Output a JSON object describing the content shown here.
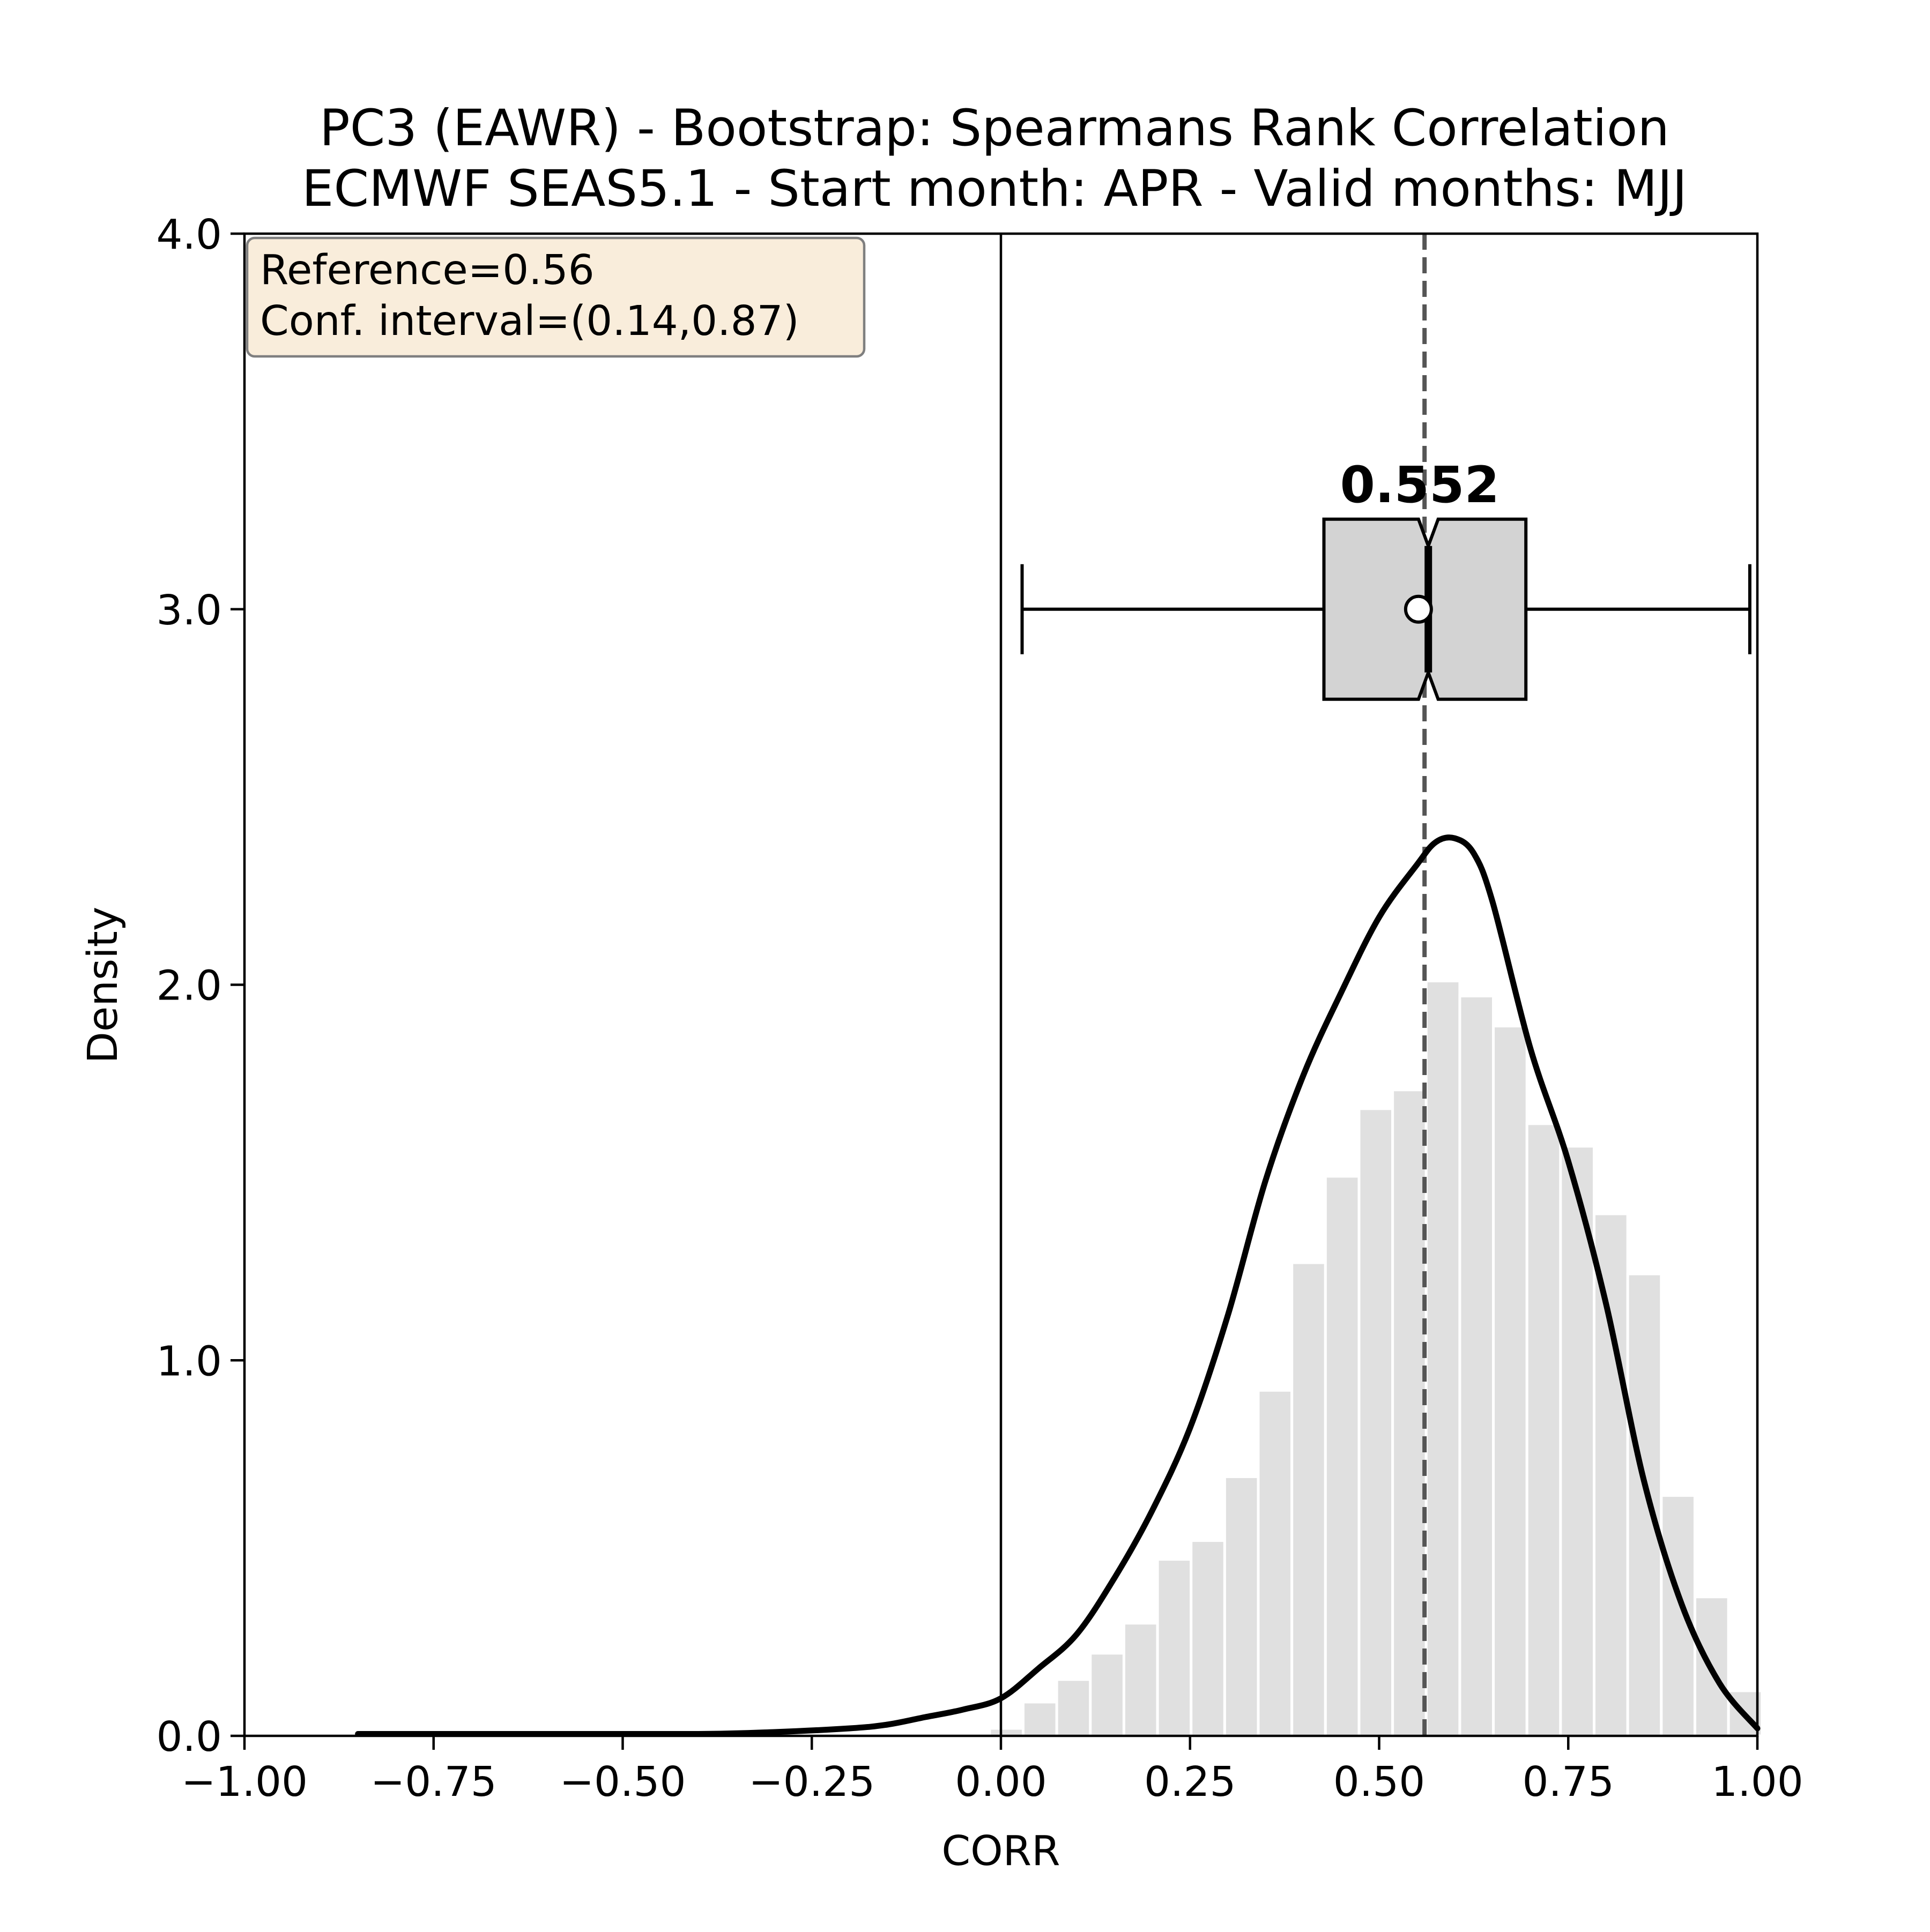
{
  "chart_data": {
    "type": "bar",
    "title": "PC3 (EAWR) - Bootstrap: Spearmans Rank Correlation",
    "subtitle": "ECMWF SEAS5.1 - Start month: APR - Valid months: MJJ",
    "xlabel": "CORR",
    "ylabel": "Density",
    "xlim": [
      -1.0,
      1.0
    ],
    "ylim": [
      0.0,
      4.0
    ],
    "xticks": [
      {
        "value": -1.0,
        "label": "−1.00"
      },
      {
        "value": -0.75,
        "label": "−0.75"
      },
      {
        "value": -0.5,
        "label": "−0.50"
      },
      {
        "value": -0.25,
        "label": "−0.25"
      },
      {
        "value": 0.0,
        "label": "0.00"
      },
      {
        "value": 0.25,
        "label": "0.25"
      },
      {
        "value": 0.5,
        "label": "0.50"
      },
      {
        "value": 0.75,
        "label": "0.75"
      },
      {
        "value": 1.0,
        "label": "1.00"
      }
    ],
    "yticks": [
      {
        "value": 0.0,
        "label": "0.0"
      },
      {
        "value": 1.0,
        "label": "1.0"
      },
      {
        "value": 2.0,
        "label": "2.0"
      },
      {
        "value": 3.0,
        "label": "3.0"
      },
      {
        "value": 4.0,
        "label": "4.0"
      }
    ],
    "grid": false,
    "histogram": {
      "bin_width": 0.0444,
      "color": "#e0e0e0",
      "bins": [
        {
          "x0": -0.015,
          "value": 0.02
        },
        {
          "x0": 0.0294,
          "value": 0.09
        },
        {
          "x0": 0.0738,
          "value": 0.15
        },
        {
          "x0": 0.1182,
          "value": 0.22
        },
        {
          "x0": 0.1626,
          "value": 0.3
        },
        {
          "x0": 0.207,
          "value": 0.47
        },
        {
          "x0": 0.2514,
          "value": 0.52
        },
        {
          "x0": 0.2958,
          "value": 0.69
        },
        {
          "x0": 0.3402,
          "value": 0.92
        },
        {
          "x0": 0.3846,
          "value": 1.26
        },
        {
          "x0": 0.429,
          "value": 1.49
        },
        {
          "x0": 0.4734,
          "value": 1.67
        },
        {
          "x0": 0.5178,
          "value": 1.72
        },
        {
          "x0": 0.5622,
          "value": 2.01
        },
        {
          "x0": 0.6066,
          "value": 1.97
        },
        {
          "x0": 0.651,
          "value": 1.89
        },
        {
          "x0": 0.6954,
          "value": 1.63
        },
        {
          "x0": 0.7398,
          "value": 1.57
        },
        {
          "x0": 0.7842,
          "value": 1.39
        },
        {
          "x0": 0.8286,
          "value": 1.23
        },
        {
          "x0": 0.873,
          "value": 0.64
        },
        {
          "x0": 0.9174,
          "value": 0.37
        },
        {
          "x0": 0.9618,
          "value": 0.12
        }
      ]
    },
    "kde": {
      "color": "#000000",
      "x": [
        -0.85,
        -0.6,
        -0.4,
        -0.3,
        -0.2,
        -0.15,
        -0.1,
        -0.05,
        0.0,
        0.05,
        0.1,
        0.15,
        0.2,
        0.25,
        0.3,
        0.35,
        0.4,
        0.45,
        0.5,
        0.55,
        0.575,
        0.6,
        0.625,
        0.65,
        0.7,
        0.75,
        0.8,
        0.85,
        0.9,
        0.95,
        1.0
      ],
      "y": [
        0.005,
        0.005,
        0.005,
        0.01,
        0.02,
        0.03,
        0.05,
        0.07,
        0.1,
        0.18,
        0.27,
        0.42,
        0.6,
        0.82,
        1.12,
        1.48,
        1.76,
        1.98,
        2.18,
        2.32,
        2.38,
        2.39,
        2.35,
        2.22,
        1.83,
        1.53,
        1.15,
        0.68,
        0.35,
        0.14,
        0.02
      ]
    },
    "vlines": [
      {
        "x": 0.0,
        "style": "solid",
        "color": "#000000"
      },
      {
        "x": 0.56,
        "style": "dashed",
        "color": "#555555"
      }
    ],
    "boxplot": {
      "y": 3.0,
      "whisker_low": 0.028,
      "q1": 0.427,
      "median": 0.565,
      "q3": 0.694,
      "whisker_high": 0.99,
      "mean": 0.552,
      "notch_low": 0.552,
      "notch_high": 0.578,
      "fill": "#d3d3d3",
      "label": "0.552"
    },
    "annotation": {
      "line1": "Reference=0.56",
      "line2": "Conf. interval=(0.14,0.87)",
      "position": "top-left",
      "fill": "#f9eddb",
      "edge": "#7f7f7f"
    }
  }
}
